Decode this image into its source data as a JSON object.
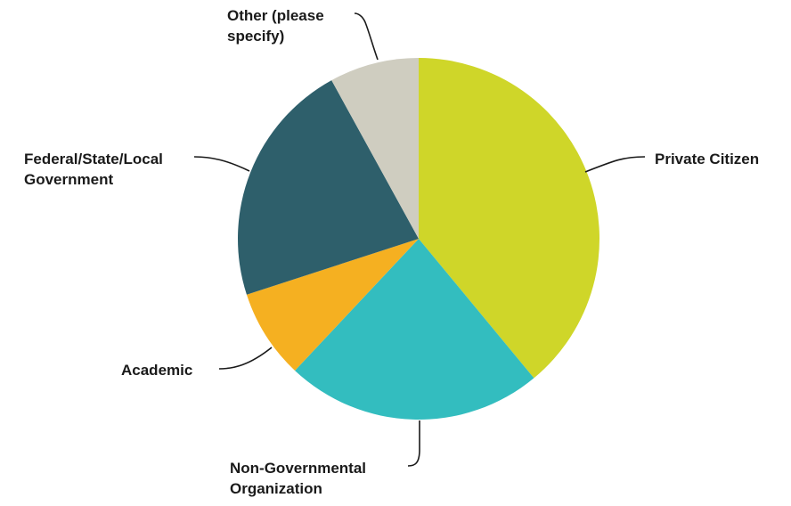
{
  "chart_data": {
    "type": "pie",
    "title": "",
    "start": "top",
    "direction": "clockwise",
    "legend": "none",
    "slices": [
      {
        "label_lines": [
          "Private Citizen"
        ],
        "value": 39,
        "color": "#cfd629"
      },
      {
        "label_lines": [
          "Non-Governmental",
          "Organization"
        ],
        "value": 23,
        "color": "#33bdbf"
      },
      {
        "label_lines": [
          "Academic"
        ],
        "value": 8,
        "color": "#f5b021"
      },
      {
        "label_lines": [
          "Federal/State/Local",
          "Government"
        ],
        "value": 22,
        "color": "#2e5f6b"
      },
      {
        "label_lines": [
          "Other (please",
          "specify)"
        ],
        "value": 8,
        "color": "#cfcdc0"
      }
    ]
  }
}
